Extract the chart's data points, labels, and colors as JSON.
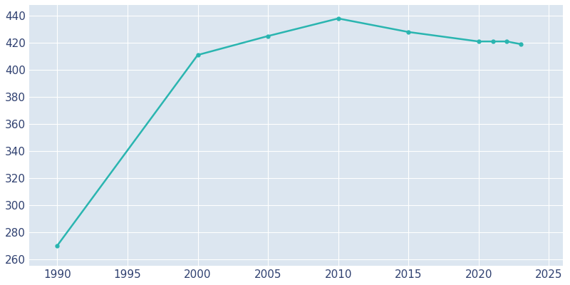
{
  "years": [
    1990,
    2000,
    2005,
    2010,
    2015,
    2020,
    2021,
    2022,
    2023
  ],
  "population": [
    270,
    411,
    425,
    438,
    428,
    421,
    421,
    421,
    419
  ],
  "line_color": "#2ab5b0",
  "marker_color": "#2ab5b0",
  "plot_background_color": "#dce6f0",
  "figure_background_color": "#ffffff",
  "grid_color": "#ffffff",
  "text_color": "#2f4070",
  "xlim": [
    1988,
    2026
  ],
  "ylim": [
    255,
    448
  ],
  "xticks": [
    1990,
    1995,
    2000,
    2005,
    2010,
    2015,
    2020,
    2025
  ],
  "yticks": [
    260,
    280,
    300,
    320,
    340,
    360,
    380,
    400,
    420,
    440
  ],
  "line_width": 1.8,
  "marker_size": 3.5
}
